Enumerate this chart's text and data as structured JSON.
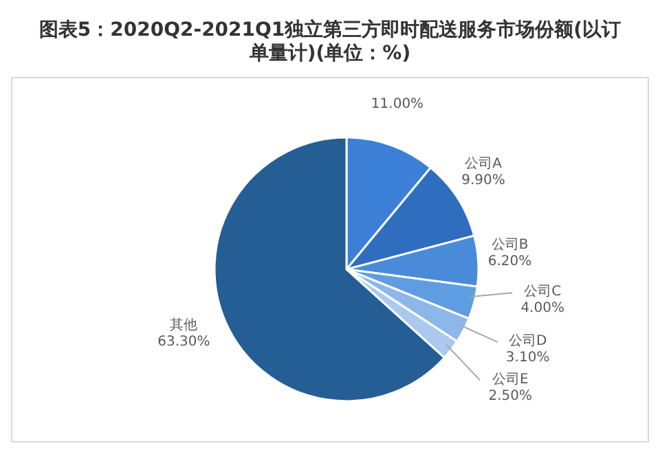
{
  "chart_data": {
    "type": "pie",
    "title": "图表5：2020Q2-2021Q1独立第三方即时配送服务市场份额(以订单量计)(单位：%)",
    "categories": [
      null,
      "公司A",
      "公司B",
      "公司C",
      "公司D",
      "公司E",
      "其他"
    ],
    "values": [
      11.0,
      9.9,
      6.2,
      4.0,
      3.1,
      2.5,
      63.3
    ],
    "value_labels": [
      "11.00%",
      "9.90%",
      "6.20%",
      "4.00%",
      "3.10%",
      "2.50%",
      "63.30%"
    ],
    "colors": [
      "#3b80d6",
      "#2f6dbf",
      "#4a8bd9",
      "#5f9de2",
      "#8db7e8",
      "#abc9ee",
      "#245e95"
    ],
    "legend": false
  }
}
